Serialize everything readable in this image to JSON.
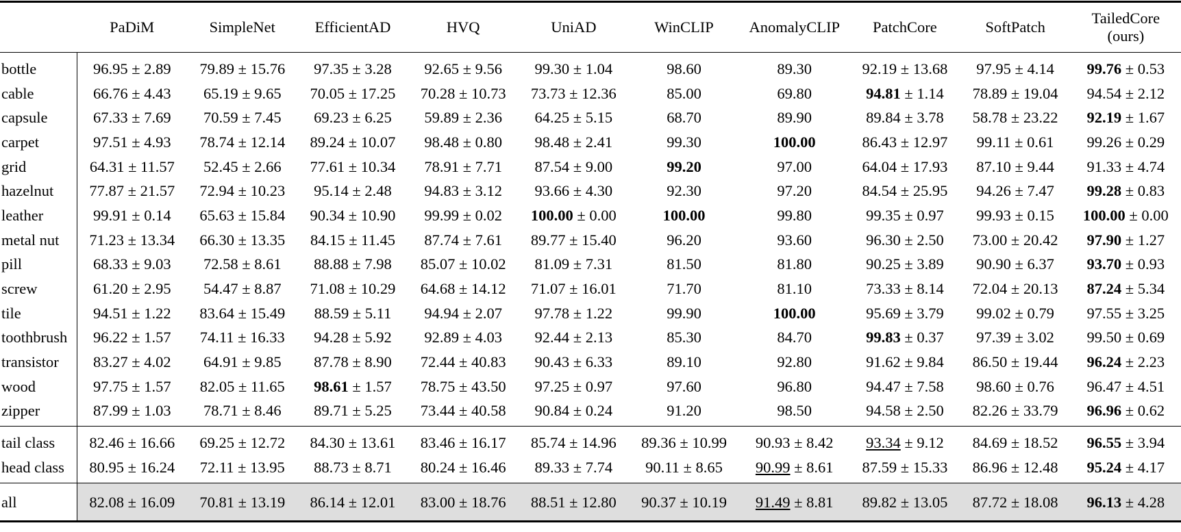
{
  "table": {
    "columns": [
      "PaDiM",
      "SimpleNet",
      "EfficientAD",
      "HVQ",
      "UniAD",
      "WinCLIP",
      "AnomalyCLIP",
      "PatchCore",
      "SoftPatch",
      "TailedCore\n(ours)"
    ],
    "sections": [
      {
        "rows": [
          {
            "label": "bottle",
            "cells": [
              "96.95 ± 2.89",
              "79.89 ± 15.76",
              "97.35 ± 3.28",
              "92.65 ± 9.56",
              "99.30 ± 1.04",
              "98.60",
              "89.30",
              "92.19 ± 13.68",
              "97.95 ± 4.14",
              {
                "text": "99.76 ± 0.53",
                "emphasis": "bold"
              }
            ]
          },
          {
            "label": "cable",
            "cells": [
              "66.76 ± 4.43",
              "65.19 ± 9.65",
              "70.05 ± 17.25",
              "70.28 ± 10.73",
              "73.73 ± 12.36",
              "85.00",
              "69.80",
              {
                "text": "94.81 ± 1.14",
                "emphasis": "bold"
              },
              "78.89 ± 19.04",
              "94.54 ± 2.12"
            ]
          },
          {
            "label": "capsule",
            "cells": [
              "67.33 ± 7.69",
              "70.59 ± 7.45",
              "69.23 ± 6.25",
              "59.89 ± 2.36",
              "64.25 ± 5.15",
              "68.70",
              "89.90",
              "89.84 ± 3.78",
              "58.78 ± 23.22",
              {
                "text": "92.19 ± 1.67",
                "emphasis": "bold"
              }
            ]
          },
          {
            "label": "carpet",
            "cells": [
              "97.51 ± 4.93",
              "78.74 ± 12.14",
              "89.24 ± 10.07",
              "98.48 ± 0.80",
              "98.48 ± 2.41",
              "99.30",
              {
                "text": "100.00",
                "emphasis": "bold"
              },
              "86.43 ± 12.97",
              "99.11 ± 0.61",
              "99.26 ± 0.29"
            ]
          },
          {
            "label": "grid",
            "cells": [
              "64.31 ± 11.57",
              "52.45 ± 2.66",
              "77.61 ± 10.34",
              "78.91 ± 7.71",
              "87.54 ± 9.00",
              {
                "text": "99.20",
                "emphasis": "bold"
              },
              "97.00",
              "64.04 ± 17.93",
              "87.10 ± 9.44",
              "91.33 ± 4.74"
            ]
          },
          {
            "label": "hazelnut",
            "cells": [
              "77.87 ± 21.57",
              "72.94 ± 10.23",
              "95.14 ± 2.48",
              "94.83 ± 3.12",
              "93.66 ± 4.30",
              "92.30",
              "97.20",
              "84.54 ± 25.95",
              "94.26 ± 7.47",
              {
                "text": "99.28 ± 0.83",
                "emphasis": "bold"
              }
            ]
          },
          {
            "label": "leather",
            "cells": [
              "99.91 ± 0.14",
              "65.63 ± 15.84",
              "90.34 ± 10.90",
              "99.99 ± 0.02",
              {
                "text": "100.00 ± 0.00",
                "emphasis": "bold"
              },
              {
                "text": "100.00",
                "emphasis": "bold"
              },
              "99.80",
              "99.35 ± 0.97",
              "99.93 ± 0.15",
              {
                "text": "100.00 ± 0.00",
                "emphasis": "bold"
              }
            ]
          },
          {
            "label": "metal nut",
            "cells": [
              "71.23 ± 13.34",
              "66.30 ± 13.35",
              "84.15 ± 11.45",
              "87.74 ± 7.61",
              "89.77 ± 15.40",
              "96.20",
              "93.60",
              "96.30 ± 2.50",
              "73.00 ± 20.42",
              {
                "text": "97.90 ± 1.27",
                "emphasis": "bold"
              }
            ]
          },
          {
            "label": "pill",
            "cells": [
              "68.33 ± 9.03",
              "72.58 ± 8.61",
              "88.88 ± 7.98",
              "85.07 ± 10.02",
              "81.09 ± 7.31",
              "81.50",
              "81.80",
              "90.25 ± 3.89",
              "90.90 ± 6.37",
              {
                "text": "93.70 ± 0.93",
                "emphasis": "bold"
              }
            ]
          },
          {
            "label": "screw",
            "cells": [
              "61.20 ± 2.95",
              "54.47 ± 8.87",
              "71.08 ± 10.29",
              "64.68 ± 14.12",
              "71.07 ± 16.01",
              "71.70",
              "81.10",
              "73.33 ± 8.14",
              "72.04 ± 20.13",
              {
                "text": "87.24 ± 5.34",
                "emphasis": "bold"
              }
            ]
          },
          {
            "label": "tile",
            "cells": [
              "94.51 ± 1.22",
              "83.64 ± 15.49",
              "88.59 ± 5.11",
              "94.94 ± 2.07",
              "97.78 ± 1.22",
              "99.90",
              {
                "text": "100.00",
                "emphasis": "bold"
              },
              "95.69 ± 3.79",
              "99.02 ± 0.79",
              "97.55 ± 3.25"
            ]
          },
          {
            "label": "toothbrush",
            "cells": [
              "96.22 ± 1.57",
              "74.11 ± 16.33",
              "94.28 ± 5.92",
              "92.89 ± 4.03",
              "92.44 ± 2.13",
              "85.30",
              "84.70",
              {
                "text": "99.83 ± 0.37",
                "emphasis": "bold"
              },
              "97.39 ± 3.02",
              "99.50 ± 0.69"
            ]
          },
          {
            "label": "transistor",
            "cells": [
              "83.27 ± 4.02",
              "64.91 ± 9.85",
              "87.78 ± 8.90",
              "72.44 ± 40.83",
              "90.43 ± 6.33",
              "89.10",
              "92.80",
              "91.62 ± 9.84",
              "86.50 ± 19.44",
              {
                "text": "96.24 ± 2.23",
                "emphasis": "bold"
              }
            ]
          },
          {
            "label": "wood",
            "cells": [
              "97.75 ± 1.57",
              "82.05 ± 11.65",
              {
                "text": "98.61 ± 1.57",
                "emphasis": "bold"
              },
              "78.75 ± 43.50",
              "97.25 ± 0.97",
              "97.60",
              "96.80",
              "94.47 ± 7.58",
              "98.60 ± 0.76",
              "96.47 ± 4.51"
            ]
          },
          {
            "label": "zipper",
            "cells": [
              "87.99 ± 1.03",
              "78.71 ± 8.46",
              "89.71 ± 5.25",
              "73.44 ± 40.58",
              "90.84 ± 0.24",
              "91.20",
              "98.50",
              "94.58 ± 2.50",
              "82.26 ± 33.79",
              {
                "text": "96.96 ± 0.62",
                "emphasis": "bold"
              }
            ]
          }
        ]
      },
      {
        "rows": [
          {
            "label": "tail class",
            "cells": [
              "82.46 ± 16.66",
              "69.25 ± 12.72",
              "84.30 ± 13.61",
              "83.46 ± 16.17",
              "85.74 ± 14.96",
              "89.36 ± 10.99",
              "90.93 ± 8.42",
              {
                "text": "93.34 ± 9.12",
                "emphasis": "underline"
              },
              "84.69 ± 18.52",
              {
                "text": "96.55 ± 3.94",
                "emphasis": "bold"
              }
            ]
          },
          {
            "label": "head class",
            "cells": [
              "80.95 ± 16.24",
              "72.11 ± 13.95",
              "88.73 ± 8.71",
              "80.24 ± 16.46",
              "89.33 ± 7.74",
              "90.11 ± 8.65",
              {
                "text": "90.99 ± 8.61",
                "emphasis": "underline"
              },
              "87.59 ± 15.33",
              "86.96 ± 12.48",
              {
                "text": "95.24 ± 4.17",
                "emphasis": "bold"
              }
            ]
          }
        ]
      },
      {
        "highlight": true,
        "rows": [
          {
            "label": "all",
            "cells": [
              "82.08 ± 16.09",
              "70.81 ± 13.19",
              "86.14 ± 12.01",
              "83.00 ± 18.76",
              "88.51 ± 12.80",
              "90.37 ± 10.19",
              {
                "text": "91.49 ± 8.81",
                "emphasis": "underline"
              },
              "89.82 ± 13.05",
              "87.72 ± 18.08",
              {
                "text": "96.13 ± 4.28",
                "emphasis": "bold"
              }
            ]
          }
        ]
      }
    ]
  }
}
